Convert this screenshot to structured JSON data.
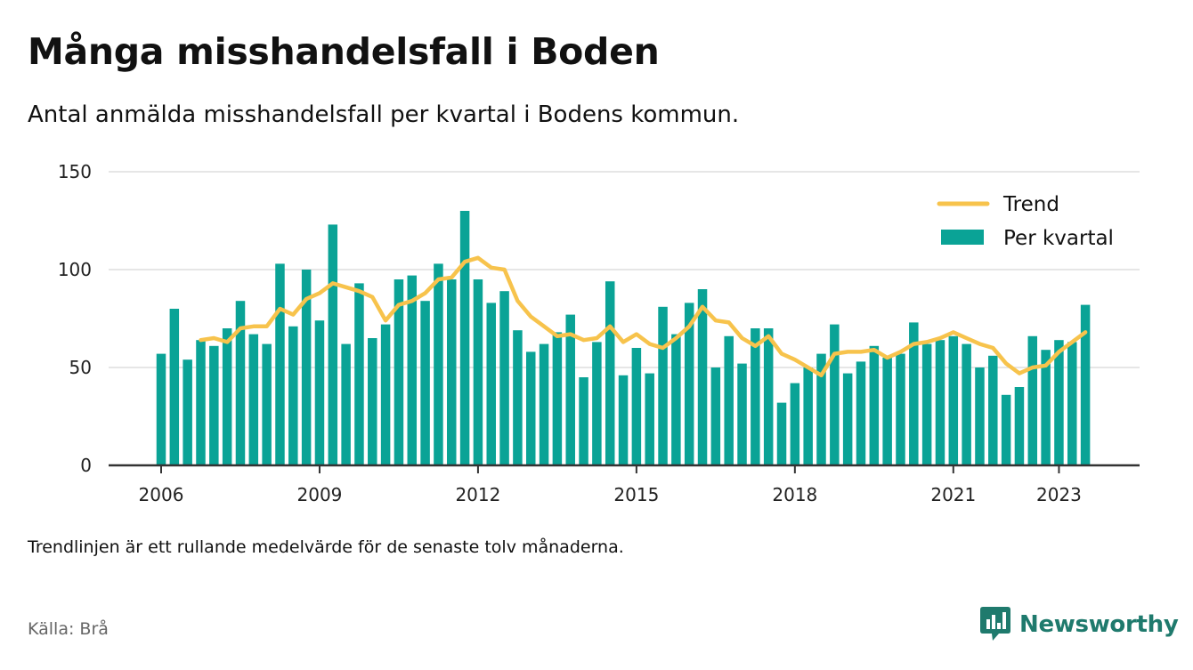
{
  "title": "Många misshandelsfall i Boden",
  "subtitle": "Antal anmälda misshandelsfall per kvartal i Bodens kommun.",
  "footnote": "Trendlinjen är ett rullande medelvärde för de senaste tolv månaderna.",
  "source": "Källa: Brå",
  "brand": "Newsworthy",
  "colors": {
    "bar": "#0aa396",
    "trend": "#f7c34c",
    "grid": "#dddddd",
    "axis": "#333333",
    "brand": "#1f7a6d"
  },
  "chart_data": {
    "type": "bar",
    "legend": {
      "placement": "top-right",
      "trend_label": "Trend",
      "bars_label": "Per kvartal"
    },
    "y_ticks": [
      0,
      50,
      100,
      150
    ],
    "x_ticks": [
      {
        "label": "2006",
        "year": 2006
      },
      {
        "label": "2009",
        "year": 2009
      },
      {
        "label": "2012",
        "year": 2012
      },
      {
        "label": "2015",
        "year": 2015
      },
      {
        "label": "2018",
        "year": 2018
      },
      {
        "label": "2021",
        "year": 2021
      },
      {
        "label": "2023",
        "year": 2023
      }
    ],
    "ylim": [
      0,
      150
    ],
    "grid": true,
    "first_quarter": "2006 Q1",
    "series": [
      {
        "name": "Per kvartal",
        "values": [
          57,
          80,
          54,
          64,
          61,
          70,
          84,
          67,
          62,
          103,
          71,
          100,
          74,
          123,
          62,
          93,
          65,
          72,
          95,
          97,
          84,
          103,
          95,
          130,
          95,
          83,
          89,
          69,
          58,
          62,
          68,
          77,
          45,
          63,
          94,
          46,
          60,
          47,
          81,
          67,
          83,
          90,
          50,
          66,
          52,
          70,
          70,
          32,
          42,
          50,
          57,
          72,
          47,
          53,
          61,
          55,
          57,
          73,
          62,
          64,
          66,
          62,
          50,
          56,
          36,
          40,
          66,
          59,
          64,
          63,
          82
        ]
      },
      {
        "name": "Trend",
        "values": [
          null,
          null,
          null,
          64,
          65,
          63,
          70,
          71,
          71,
          80,
          77,
          85,
          88,
          93,
          91,
          89,
          86,
          74,
          82,
          84,
          88,
          95,
          96,
          104,
          106,
          101,
          100,
          84,
          76,
          71,
          66,
          67,
          64,
          65,
          71,
          63,
          67,
          62,
          60,
          65,
          71,
          81,
          74,
          73,
          65,
          61,
          66,
          57,
          54,
          50,
          46,
          57,
          58,
          58,
          59,
          55,
          58,
          62,
          63,
          65,
          68,
          65,
          62,
          60,
          52,
          47,
          50,
          51,
          58,
          63,
          68
        ]
      }
    ]
  }
}
